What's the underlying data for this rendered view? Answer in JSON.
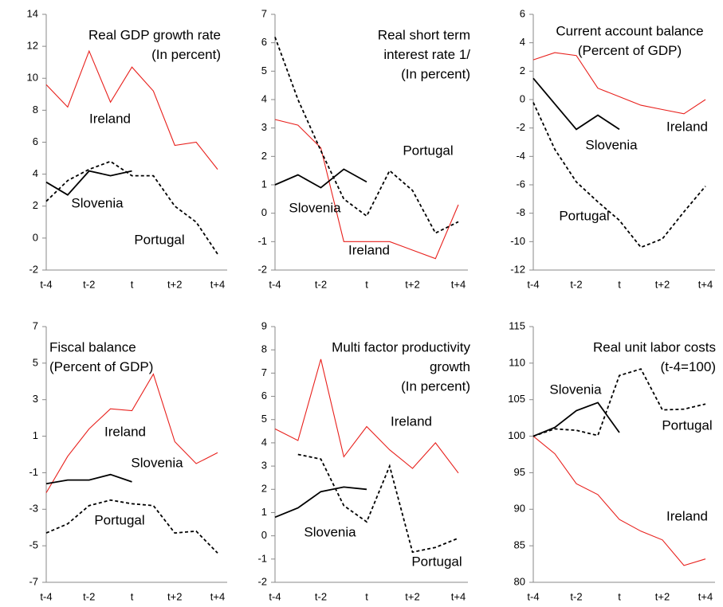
{
  "chart_data": [
    {
      "type": "line",
      "title": [
        "Real GDP growth rate",
        "(In percent)"
      ],
      "categories": [
        "t-4",
        null,
        "t-2",
        null,
        "t",
        null,
        "t+2",
        null,
        "t+4"
      ],
      "series": [
        {
          "name": "Ireland",
          "color": "#e8201c",
          "values": [
            9.6,
            8.2,
            11.7,
            8.5,
            10.7,
            9.2,
            5.8,
            6.0,
            4.3
          ]
        },
        {
          "name": "Slovenia",
          "color": "#000000",
          "values": [
            3.5,
            2.7,
            4.2,
            3.9,
            4.2,
            null,
            null,
            null,
            null
          ]
        },
        {
          "name": "Portugal",
          "color": "#000000",
          "dash": true,
          "values": [
            2.3,
            3.6,
            4.3,
            4.8,
            3.9,
            3.9,
            2.0,
            1.0,
            -1.0
          ]
        }
      ],
      "ylim": [
        -2,
        14
      ],
      "yticks": [
        -2,
        0,
        2,
        4,
        6,
        8,
        10,
        12,
        14
      ]
    },
    {
      "type": "line",
      "title": [
        "Real short term",
        "interest rate 1/",
        "(In percent)"
      ],
      "categories": [
        "t-4",
        null,
        "t-2",
        null,
        "t",
        null,
        "t+2",
        null,
        "t+4"
      ],
      "series": [
        {
          "name": "Ireland",
          "color": "#e8201c",
          "values": [
            3.3,
            3.1,
            2.3,
            -1.0,
            -1.0,
            -1.0,
            -1.3,
            -1.6,
            0.3
          ]
        },
        {
          "name": "Slovenia",
          "color": "#000000",
          "values": [
            1.0,
            1.35,
            0.9,
            1.55,
            1.1,
            null,
            null,
            null,
            null
          ]
        },
        {
          "name": "Portugal",
          "color": "#000000",
          "dash": true,
          "values": [
            6.2,
            4.0,
            2.2,
            0.5,
            -0.1,
            1.5,
            0.8,
            -0.7,
            -0.3
          ]
        }
      ],
      "ylim": [
        -2,
        7
      ],
      "yticks": [
        -2,
        -1,
        0,
        1,
        2,
        3,
        4,
        5,
        6,
        7
      ]
    },
    {
      "type": "line",
      "title": [
        "Current account balance",
        "(Percent of GDP)"
      ],
      "categories": [
        "t-4",
        null,
        "t-2",
        null,
        "t",
        null,
        "t+2",
        null,
        "t+4"
      ],
      "series": [
        {
          "name": "Ireland",
          "color": "#e8201c",
          "values": [
            2.8,
            3.3,
            3.1,
            0.8,
            0.2,
            -0.4,
            -0.7,
            -1.0,
            0.0
          ]
        },
        {
          "name": "Slovenia",
          "color": "#000000",
          "values": [
            1.5,
            -0.3,
            -2.1,
            -1.1,
            -2.1,
            null,
            null,
            null,
            null
          ]
        },
        {
          "name": "Portugal",
          "color": "#000000",
          "dash": true,
          "values": [
            -0.2,
            -3.5,
            -5.8,
            -7.2,
            -8.5,
            -10.4,
            -9.8,
            -7.9,
            -6.1
          ]
        }
      ],
      "ylim": [
        -12,
        6
      ],
      "yticks": [
        -12,
        -10,
        -8,
        -6,
        -4,
        -2,
        0,
        2,
        4,
        6
      ]
    },
    {
      "type": "line",
      "title": [
        "Fiscal balance",
        "(Percent of GDP)"
      ],
      "categories": [
        "t-4",
        null,
        "t-2",
        null,
        "t",
        null,
        "t+2",
        null,
        "t+4"
      ],
      "series": [
        {
          "name": "Ireland",
          "color": "#e8201c",
          "values": [
            -2.1,
            -0.1,
            1.4,
            2.5,
            2.4,
            4.4,
            0.7,
            -0.5,
            0.1
          ]
        },
        {
          "name": "Slovenia",
          "color": "#000000",
          "values": [
            -1.6,
            -1.4,
            -1.4,
            -1.1,
            -1.5,
            null,
            null,
            null,
            null
          ]
        },
        {
          "name": "Portugal",
          "color": "#000000",
          "dash": true,
          "values": [
            -4.3,
            -3.8,
            -2.8,
            -2.5,
            -2.7,
            -2.8,
            -4.3,
            -4.2,
            -5.4
          ]
        }
      ],
      "ylim": [
        -7,
        7
      ],
      "yticks": [
        -7,
        -5,
        -3,
        -1,
        1,
        3,
        5,
        7
      ]
    },
    {
      "type": "line",
      "title": [
        "Multi factor productivity",
        "growth",
        "(In percent)"
      ],
      "categories": [
        "t-4",
        null,
        "t-2",
        null,
        "t",
        null,
        "t+2",
        null,
        "t+4"
      ],
      "series": [
        {
          "name": "Ireland",
          "color": "#e8201c",
          "values": [
            4.6,
            4.1,
            7.6,
            3.4,
            4.7,
            3.7,
            2.9,
            4.0,
            2.7
          ]
        },
        {
          "name": "Slovenia",
          "color": "#000000",
          "values": [
            0.8,
            1.2,
            1.9,
            2.1,
            2.0,
            null,
            null,
            null,
            null
          ]
        },
        {
          "name": "Portugal",
          "color": "#000000",
          "dash": true,
          "values": [
            null,
            3.5,
            3.3,
            1.3,
            0.6,
            3.0,
            -0.7,
            -0.5,
            -0.1
          ]
        }
      ],
      "ylim": [
        -2,
        9
      ],
      "yticks": [
        -2,
        -1,
        0,
        1,
        2,
        3,
        4,
        5,
        6,
        7,
        8,
        9
      ]
    },
    {
      "type": "line",
      "title": [
        "Real unit labor costs",
        "(t-4=100)"
      ],
      "categories": [
        "t-4",
        null,
        "t-2",
        null,
        "t",
        null,
        "t+2",
        null,
        "t+4"
      ],
      "series": [
        {
          "name": "Ireland",
          "color": "#e8201c",
          "values": [
            100,
            97.6,
            93.5,
            92.0,
            88.6,
            87.0,
            85.8,
            82.3,
            83.2
          ]
        },
        {
          "name": "Slovenia",
          "color": "#000000",
          "values": [
            100,
            101.2,
            103.5,
            104.6,
            100.5,
            null,
            null,
            null,
            null
          ]
        },
        {
          "name": "Portugal",
          "color": "#000000",
          "dash": true,
          "values": [
            100,
            101.0,
            100.8,
            100.1,
            108.3,
            109.2,
            103.6,
            103.7,
            104.4
          ]
        }
      ],
      "ylim": [
        80,
        115
      ],
      "yticks": [
        80,
        85,
        90,
        95,
        100,
        105,
        110,
        115
      ]
    }
  ]
}
